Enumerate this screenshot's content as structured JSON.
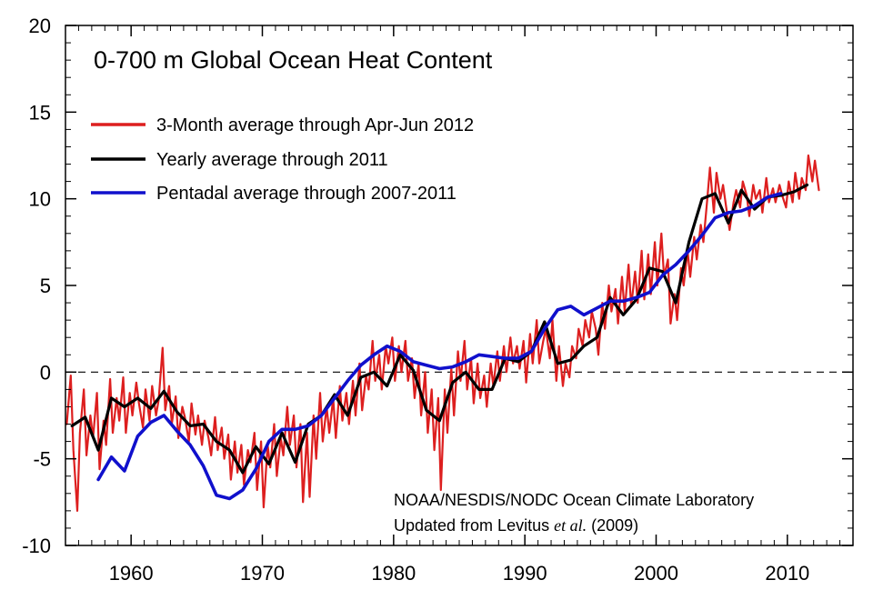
{
  "chart_data": {
    "type": "line",
    "title": "0-700 m Global Ocean Heat Content",
    "xlabel": "",
    "ylabel": "",
    "xlim": [
      1955,
      2015
    ],
    "ylim": [
      -10,
      20
    ],
    "xticks": [
      1960,
      1970,
      1980,
      1990,
      2000,
      2010
    ],
    "yticks": [
      -10,
      -5,
      0,
      5,
      10,
      15,
      20
    ],
    "xtick_labels": [
      "1960",
      "1970",
      "1980",
      "1990",
      "2000",
      "2010"
    ],
    "ytick_labels": [
      "-10",
      "-5",
      "0",
      "5",
      "10",
      "15",
      "20"
    ],
    "zero_line": "dashed",
    "legend_position": "top-left",
    "series": [
      {
        "name": "3-Month average through Apr-Jun 2012",
        "color": "#dd1f1f",
        "x": [
          1955.1,
          1955.4,
          1955.6,
          1955.9,
          1956.1,
          1956.4,
          1956.6,
          1956.9,
          1957.1,
          1957.4,
          1957.6,
          1957.9,
          1958.1,
          1958.4,
          1958.6,
          1958.9,
          1959.1,
          1959.4,
          1959.6,
          1959.9,
          1960.1,
          1960.4,
          1960.6,
          1960.9,
          1961.1,
          1961.4,
          1961.6,
          1961.9,
          1962.1,
          1962.4,
          1962.6,
          1962.9,
          1963.1,
          1963.4,
          1963.6,
          1963.9,
          1964.1,
          1964.4,
          1964.6,
          1964.9,
          1965.1,
          1965.4,
          1965.6,
          1965.9,
          1966.1,
          1966.4,
          1966.6,
          1966.9,
          1967.1,
          1967.4,
          1967.6,
          1967.9,
          1968.1,
          1968.4,
          1968.6,
          1968.9,
          1969.1,
          1969.4,
          1969.6,
          1969.9,
          1970.1,
          1970.4,
          1970.6,
          1970.9,
          1971.1,
          1971.4,
          1971.6,
          1971.9,
          1972.1,
          1972.4,
          1972.6,
          1972.9,
          1973.1,
          1973.4,
          1973.6,
          1973.9,
          1974.1,
          1974.4,
          1974.6,
          1974.9,
          1975.1,
          1975.4,
          1975.6,
          1975.9,
          1976.1,
          1976.4,
          1976.6,
          1976.9,
          1977.1,
          1977.4,
          1977.6,
          1977.9,
          1978.1,
          1978.4,
          1978.6,
          1978.9,
          1979.1,
          1979.4,
          1979.6,
          1979.9,
          1980.1,
          1980.4,
          1980.6,
          1980.9,
          1981.1,
          1981.4,
          1981.6,
          1981.9,
          1982.1,
          1982.4,
          1982.6,
          1982.9,
          1983.1,
          1983.4,
          1983.6,
          1983.9,
          1984.1,
          1984.4,
          1984.6,
          1984.9,
          1985.1,
          1985.4,
          1985.6,
          1985.9,
          1986.1,
          1986.4,
          1986.6,
          1986.9,
          1987.1,
          1987.4,
          1987.6,
          1987.9,
          1988.1,
          1988.4,
          1988.6,
          1988.9,
          1989.1,
          1989.4,
          1989.6,
          1989.9,
          1990.1,
          1990.4,
          1990.6,
          1990.9,
          1991.1,
          1991.4,
          1991.6,
          1991.9,
          1992.1,
          1992.4,
          1992.6,
          1992.9,
          1993.1,
          1993.4,
          1993.6,
          1993.9,
          1994.1,
          1994.4,
          1994.6,
          1994.9,
          1995.1,
          1995.4,
          1995.6,
          1995.9,
          1996.1,
          1996.4,
          1996.6,
          1996.9,
          1997.1,
          1997.4,
          1997.6,
          1997.9,
          1998.1,
          1998.4,
          1998.6,
          1998.9,
          1999.1,
          1999.4,
          1999.6,
          1999.9,
          2000.1,
          2000.4,
          2000.6,
          2000.9,
          2001.1,
          2001.4,
          2001.6,
          2001.9,
          2002.1,
          2002.4,
          2002.6,
          2002.9,
          2003.1,
          2003.4,
          2003.6,
          2003.9,
          2004.1,
          2004.4,
          2004.6,
          2004.9,
          2005.1,
          2005.4,
          2005.6,
          2005.9,
          2006.1,
          2006.4,
          2006.6,
          2006.9,
          2007.1,
          2007.4,
          2007.6,
          2007.9,
          2008.1,
          2008.4,
          2008.6,
          2008.9,
          2009.1,
          2009.4,
          2009.6,
          2009.9,
          2010.1,
          2010.4,
          2010.6,
          2010.9,
          2011.1,
          2011.4,
          2011.6,
          2011.9,
          2012.1,
          2012.4
        ],
        "y": [
          -3.0,
          -0.2,
          -4.5,
          -8.0,
          -3.5,
          -1.0,
          -4.8,
          -2.5,
          -3.8,
          -1.2,
          -5.6,
          -2.8,
          -4.2,
          -0.4,
          -3.5,
          -1.5,
          -2.8,
          -0.3,
          -3.5,
          -1.2,
          -2.5,
          -0.6,
          -1.8,
          -3.2,
          -1.0,
          -2.8,
          -0.8,
          -2.5,
          -1.6,
          1.4,
          -2.2,
          -0.8,
          -3.0,
          -1.4,
          -3.8,
          -2.0,
          -2.6,
          -4.0,
          -1.8,
          -3.6,
          -2.5,
          -4.2,
          -2.8,
          -3.8,
          -4.8,
          -2.6,
          -4.5,
          -3.2,
          -5.0,
          -3.6,
          -6.2,
          -4.0,
          -5.8,
          -4.2,
          -6.5,
          -4.5,
          -5.2,
          -3.5,
          -6.8,
          -4.0,
          -7.8,
          -4.2,
          -5.5,
          -3.0,
          -6.0,
          -3.8,
          -4.8,
          -2.0,
          -4.2,
          -2.5,
          -5.5,
          -3.0,
          -7.5,
          -3.5,
          -7.2,
          -2.5,
          -5.0,
          -1.2,
          -4.0,
          -2.0,
          -3.5,
          -1.5,
          -3.8,
          -0.8,
          -2.8,
          -1.2,
          -3.0,
          -0.5,
          -2.5,
          0.5,
          -2.2,
          -0.2,
          -1.0,
          1.8,
          -0.5,
          1.0,
          -1.0,
          1.5,
          0.5,
          2.0,
          -0.5,
          1.5,
          0.0,
          1.8,
          -0.5,
          0.8,
          -1.5,
          0.5,
          -2.5,
          0.0,
          -3.5,
          -1.0,
          -4.5,
          -1.5,
          -6.8,
          -1.0,
          -3.5,
          0.2,
          -2.5,
          1.2,
          -0.5,
          1.8,
          -1.0,
          0.8,
          -1.8,
          0.5,
          -1.5,
          -0.2,
          -2.0,
          0.5,
          -0.8,
          1.2,
          -0.5,
          1.5,
          0.0,
          2.0,
          0.5,
          1.5,
          0.2,
          1.8,
          -0.6,
          2.2,
          0.5,
          3.0,
          0.5,
          1.8,
          2.5,
          0.8,
          3.0,
          -0.5,
          1.5,
          -0.8,
          0.5,
          -0.3,
          1.5,
          0.8,
          2.5,
          1.5,
          3.0,
          2.0,
          3.5,
          2.5,
          1.0,
          4.0,
          2.5,
          5.0,
          3.5,
          4.8,
          2.8,
          5.5,
          3.5,
          6.2,
          3.8,
          5.8,
          4.0,
          7.0,
          4.2,
          6.8,
          4.5,
          7.5,
          5.0,
          8.0,
          5.5,
          6.5,
          2.8,
          4.5,
          3.0,
          6.0,
          5.0,
          7.0,
          5.5,
          7.8,
          6.5,
          8.5,
          7.5,
          10.0,
          11.8,
          9.2,
          11.5,
          10.0,
          10.8,
          9.2,
          8.2,
          9.8,
          10.5,
          9.5,
          11.0,
          10.2,
          9.0,
          10.8,
          10.0,
          10.5,
          9.2,
          11.2,
          9.8,
          10.6,
          9.8,
          10.8,
          10.2,
          9.5,
          11.0,
          9.8,
          11.5,
          10.0,
          11.2,
          10.5,
          12.5,
          11.0,
          12.2,
          10.5
        ]
      },
      {
        "name": "Yearly average through 2011",
        "color": "#000000",
        "x": [
          1955.5,
          1956.5,
          1957.5,
          1958.5,
          1959.5,
          1960.5,
          1961.5,
          1962.5,
          1963.5,
          1964.5,
          1965.5,
          1966.5,
          1967.5,
          1968.5,
          1969.5,
          1970.5,
          1971.5,
          1972.5,
          1973.5,
          1974.5,
          1975.5,
          1976.5,
          1977.5,
          1978.5,
          1979.5,
          1980.5,
          1981.5,
          1982.5,
          1983.5,
          1984.5,
          1985.5,
          1986.5,
          1987.5,
          1988.5,
          1989.5,
          1990.5,
          1991.5,
          1992.5,
          1993.5,
          1994.5,
          1995.5,
          1996.5,
          1997.5,
          1998.5,
          1999.5,
          2000.5,
          2001.5,
          2002.5,
          2003.5,
          2004.5,
          2005.5,
          2006.5,
          2007.5,
          2008.5,
          2009.5,
          2010.5,
          2011.5
        ],
        "y": [
          -3.1,
          -2.6,
          -4.5,
          -1.5,
          -2.0,
          -1.5,
          -2.1,
          -1.1,
          -2.3,
          -3.1,
          -3.0,
          -4.0,
          -4.5,
          -5.8,
          -4.3,
          -5.3,
          -3.5,
          -5.2,
          -3.0,
          -2.5,
          -1.3,
          -2.5,
          -0.3,
          0.0,
          -0.8,
          1.0,
          0.1,
          -2.2,
          -2.8,
          -0.6,
          0.0,
          -1.0,
          -1.0,
          0.8,
          0.6,
          1.2,
          2.9,
          0.5,
          0.7,
          1.5,
          2.0,
          4.3,
          3.3,
          4.2,
          6.0,
          5.8,
          4.0,
          7.5,
          10.0,
          10.3,
          8.6,
          10.5,
          9.4,
          10.1,
          10.2,
          10.4,
          10.8
        ]
      },
      {
        "name": "Pentadal average through 2007-2011",
        "color": "#1010cc",
        "x": [
          1957.5,
          1958.5,
          1959.5,
          1960.5,
          1961.5,
          1962.5,
          1963.5,
          1964.5,
          1965.5,
          1966.5,
          1967.5,
          1968.5,
          1969.5,
          1970.5,
          1971.5,
          1972.5,
          1973.5,
          1974.5,
          1975.5,
          1976.5,
          1977.5,
          1978.5,
          1979.5,
          1980.5,
          1981.5,
          1982.5,
          1983.5,
          1984.5,
          1985.5,
          1986.5,
          1987.5,
          1988.5,
          1989.5,
          1990.5,
          1991.5,
          1992.5,
          1993.5,
          1994.5,
          1995.5,
          1996.5,
          1997.5,
          1998.5,
          1999.5,
          2000.5,
          2001.5,
          2002.5,
          2003.5,
          2004.5,
          2005.5,
          2006.5,
          2007.5,
          2008.5,
          2009.5
        ],
        "y": [
          -6.2,
          -4.9,
          -5.7,
          -3.7,
          -2.9,
          -2.5,
          -3.4,
          -4.2,
          -5.4,
          -7.1,
          -7.3,
          -6.8,
          -5.6,
          -4.0,
          -3.3,
          -3.3,
          -3.1,
          -2.5,
          -1.5,
          -0.5,
          0.4,
          1.0,
          1.5,
          1.2,
          0.6,
          0.4,
          0.2,
          0.3,
          0.6,
          1.0,
          0.9,
          0.8,
          0.8,
          1.2,
          2.5,
          3.6,
          3.8,
          3.3,
          3.7,
          4.1,
          4.1,
          4.3,
          4.6,
          5.6,
          6.2,
          7.0,
          7.9,
          8.9,
          9.2,
          9.3,
          9.6,
          10.1,
          10.3
        ]
      }
    ],
    "credit_line1": "NOAA/NESDIS/NODC Ocean Climate Laboratory",
    "credit_line2_prefix": "Updated from Levitus ",
    "credit_line2_italic": "et al.",
    "credit_line2_suffix": " (2009)"
  }
}
